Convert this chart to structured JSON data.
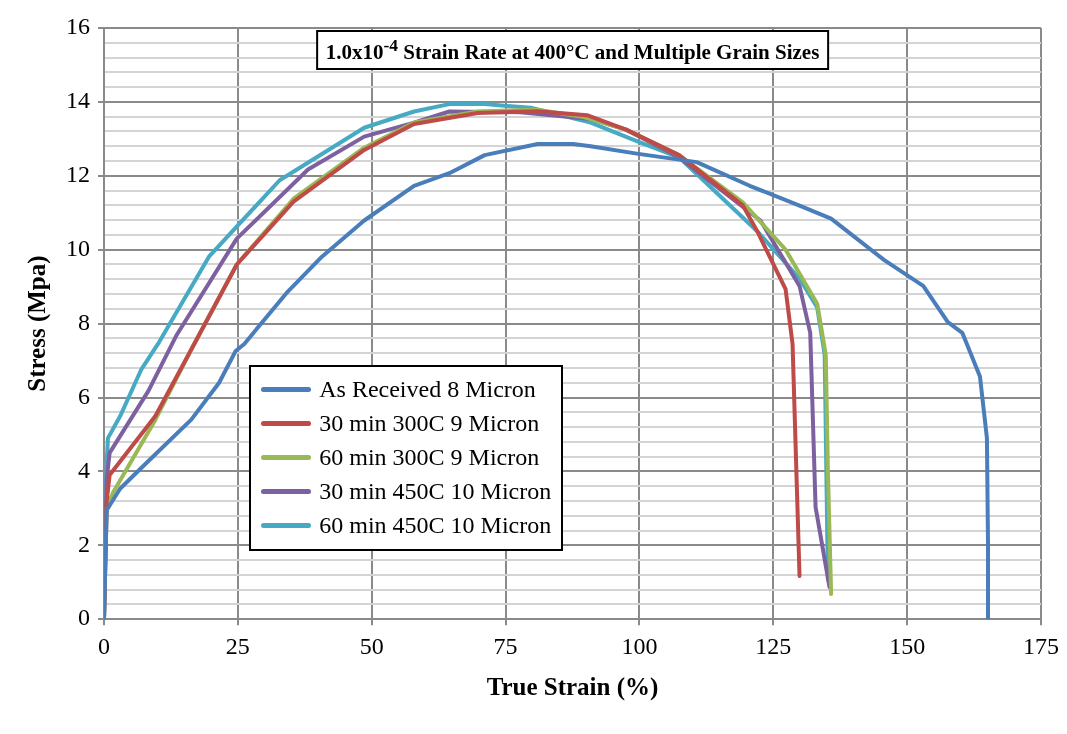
{
  "chart_data": {
    "type": "line",
    "title": "1.0x10$^{-4}$ Strain Rate at 400°C and Multiple Grain Sizes",
    "xlabel": "True Strain (%)",
    "ylabel": "Stress (Mpa)",
    "xlim": [
      0,
      175
    ],
    "xticks": [
      0,
      25,
      50,
      75,
      100,
      125,
      150,
      175
    ],
    "ylim": [
      0,
      16
    ],
    "yticks": [
      0,
      {
        "value": 0.4,
        "label": null
      },
      {
        "value": 0.8,
        "label": null
      },
      {
        "value": 1.2,
        "label": null
      },
      {
        "value": 1.6,
        "label": null
      },
      2,
      {
        "value": 2.4,
        "label": null
      },
      {
        "value": 2.8,
        "label": null
      },
      {
        "value": 3.2,
        "label": null
      },
      {
        "value": 3.6,
        "label": null
      },
      4,
      {
        "value": 4.4,
        "label": null
      },
      {
        "value": 4.8,
        "label": null
      },
      {
        "value": 5.2,
        "label": null
      },
      {
        "value": 5.6,
        "label": null
      },
      6,
      {
        "value": 6.4,
        "label": null
      },
      {
        "value": 6.8,
        "label": null
      },
      {
        "value": 7.2,
        "label": null
      },
      {
        "value": 7.6,
        "label": null
      },
      8,
      {
        "value": 8.4,
        "label": null
      },
      {
        "value": 8.8,
        "label": null
      },
      {
        "value": 9.2,
        "label": null
      },
      {
        "value": 9.6,
        "label": null
      },
      10,
      {
        "value": 10.4,
        "label": null
      },
      {
        "value": 10.8,
        "label": null
      },
      {
        "value": 11.2,
        "label": null
      },
      {
        "value": 11.6,
        "label": null
      },
      12,
      {
        "value": 12.4,
        "label": null
      },
      {
        "value": 12.8,
        "label": null
      },
      {
        "value": 13.2,
        "label": null
      },
      {
        "value": 13.6,
        "label": null
      },
      14,
      {
        "value": 14.4,
        "label": null
      },
      {
        "value": 14.8,
        "label": null
      },
      {
        "value": 15.2,
        "label": null
      },
      {
        "value": 15.6,
        "label": null
      },
      16
    ],
    "grid": true,
    "legend": "bottom left",
    "marker": "none",
    "line_style": "solid",
    "series": [
      {
        "name": "As Received  8 Micron",
        "color": "#4a7ebb",
        "x": [
          0,
          0.5,
          3,
          7,
          16.3,
          21.5,
          24.6,
          26.2,
          34.1,
          40.7,
          48.6,
          57.9,
          64.5,
          71.1,
          81,
          87.6,
          90.9,
          99.5,
          110.7,
          120.6,
          129.9,
          135.8,
          145.8,
          153,
          157.6,
          160.3,
          163.6,
          164.9,
          165.1,
          165.1
        ],
        "values": [
          0,
          2.95,
          3.53,
          4.1,
          5.4,
          6.4,
          7.26,
          7.45,
          8.83,
          9.81,
          10.79,
          11.73,
          12.07,
          12.56,
          12.86,
          12.86,
          12.8,
          12.6,
          12.37,
          11.73,
          11.19,
          10.84,
          9.71,
          9.02,
          8.04,
          7.75,
          6.57,
          4.9,
          2.05,
          0
        ]
      },
      {
        "name": "30 min 300C 9 Micron",
        "color": "#be4b48",
        "x": [
          0,
          0.5,
          1.05,
          9.6,
          16.3,
          24.8,
          35.4,
          48.6,
          57.9,
          69.8,
          81,
          90.2,
          97.5,
          107.4,
          119.3,
          122,
          127.3,
          128.6,
          129.9
        ],
        "values": [
          0,
          3.2,
          3.9,
          5.5,
          7.3,
          9.6,
          11.3,
          12.7,
          13.4,
          13.7,
          13.75,
          13.64,
          13.25,
          12.56,
          11.2,
          10.5,
          8.93,
          7.45,
          1.17
        ]
      },
      {
        "name": "60 min 300C 9 Micron",
        "color": "#98b954",
        "x": [
          0,
          0.5,
          1.7,
          9.6,
          16.3,
          24.8,
          35.4,
          48.6,
          57.9,
          69.8,
          81,
          89.6,
          97.5,
          107.4,
          119.3,
          127.3,
          133.2,
          134.8,
          135.2,
          135.8
        ],
        "values": [
          0,
          3.0,
          3.43,
          5.4,
          7.3,
          9.6,
          11.38,
          12.76,
          13.44,
          13.74,
          13.79,
          13.59,
          13.25,
          12.56,
          11.28,
          10.0,
          8.54,
          7.16,
          4.02,
          0.68
        ]
      },
      {
        "name": "30 min 450C 10 Micron",
        "color": "#7d60a0",
        "x": [
          0,
          0.5,
          1.05,
          8.3,
          13.6,
          24.8,
          38.1,
          48.6,
          57.9,
          64.5,
          77.7,
          90.9,
          97.5,
          107.4,
          122.6,
          129.9,
          131.9,
          132.9,
          135.5
        ],
        "values": [
          0,
          3.8,
          4.5,
          6.18,
          7.7,
          10.3,
          12.17,
          13.06,
          13.44,
          13.74,
          13.72,
          13.54,
          13.25,
          12.5,
          10.79,
          9.02,
          7.75,
          3.03,
          0.87
        ]
      },
      {
        "name": "60 min 450C 10 Micron",
        "color": "#46aac5",
        "x": [
          0,
          0.5,
          0.73,
          3,
          7,
          10.3,
          19.6,
          32.8,
          48.6,
          57.9,
          64.5,
          71.1,
          79.7,
          90.9,
          100.2,
          107.4,
          122,
          129.9,
          133.2,
          134.6,
          135.2
        ],
        "values": [
          0,
          4.2,
          4.9,
          5.49,
          6.77,
          7.5,
          9.81,
          11.88,
          13.3,
          13.74,
          13.94,
          13.94,
          13.84,
          13.44,
          12.9,
          12.5,
          10.5,
          9.22,
          8.44,
          7.16,
          1.07
        ]
      }
    ]
  }
}
